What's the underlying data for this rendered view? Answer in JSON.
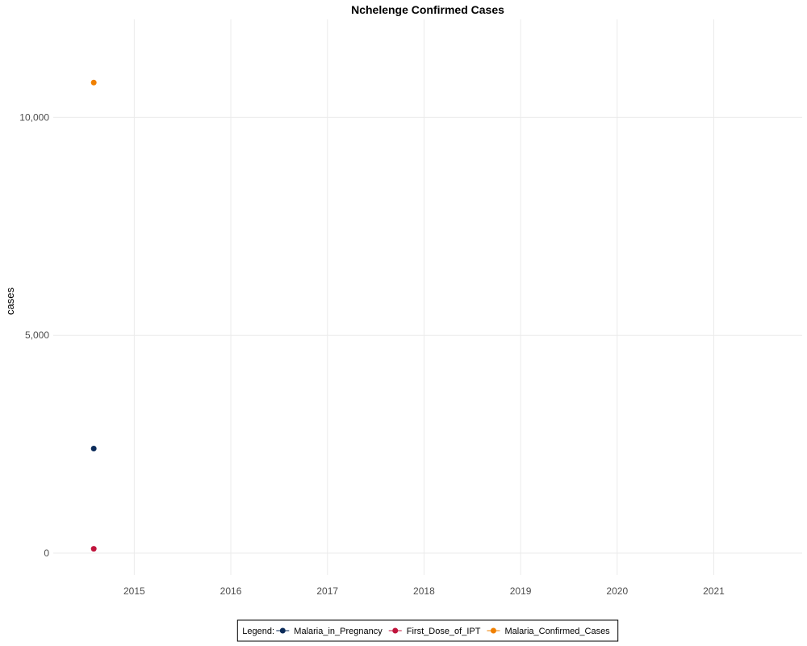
{
  "chart_data": {
    "type": "scatter",
    "title": "Nchelenge Confirmed Cases",
    "xlabel": "",
    "ylabel": "cases",
    "x_ticks": [
      "2015",
      "2016",
      "2017",
      "2018",
      "2019",
      "2020",
      "2021"
    ],
    "y_ticks": [
      "0",
      "5,000",
      "10,000"
    ],
    "y_tick_values": [
      0,
      5000,
      10000
    ],
    "xlim": [
      "2014-03-01",
      "2021-12-01"
    ],
    "ylim": [
      -500,
      12250
    ],
    "grid": true,
    "legend": {
      "title": "Legend:",
      "placement": "bottom"
    },
    "series": [
      {
        "name": "Malaria_in_Pregnancy",
        "color": "#0b2b5a",
        "points": [
          {
            "x": "2014-08-01",
            "y": 2400
          }
        ]
      },
      {
        "name": "First_Dose_of_IPT",
        "color": "#c0143c",
        "points": [
          {
            "x": "2014-08-01",
            "y": 100
          }
        ]
      },
      {
        "name": "Malaria_Confirmed_Cases",
        "color": "#f08000",
        "points": [
          {
            "x": "2014-08-01",
            "y": 10800
          }
        ]
      }
    ]
  }
}
